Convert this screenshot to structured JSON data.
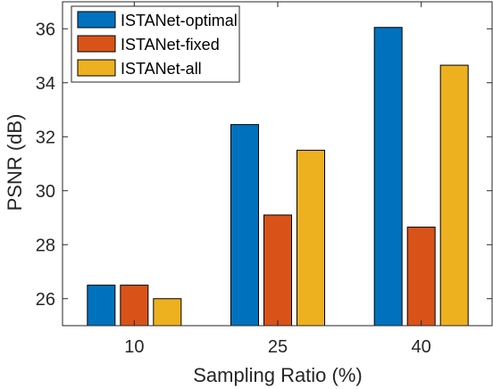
{
  "chart_data": {
    "type": "bar",
    "title": "",
    "xlabel": "Sampling Ratio (%)",
    "ylabel": "PSNR (dB)",
    "categories": [
      "10",
      "25",
      "40"
    ],
    "ylim": [
      25,
      37
    ],
    "yticks": [
      "26",
      "28",
      "30",
      "32",
      "34",
      "36"
    ],
    "grid": false,
    "legend_position": "top-left",
    "series": [
      {
        "name": "ISTANet-optimal",
        "color": "#0072BD",
        "values": [
          26.5,
          32.45,
          36.05
        ]
      },
      {
        "name": "ISTANet-fixed",
        "color": "#D95319",
        "values": [
          26.5,
          29.1,
          28.65
        ]
      },
      {
        "name": "ISTANet-all",
        "color": "#EDB120",
        "values": [
          26.0,
          31.5,
          34.65
        ]
      }
    ]
  }
}
